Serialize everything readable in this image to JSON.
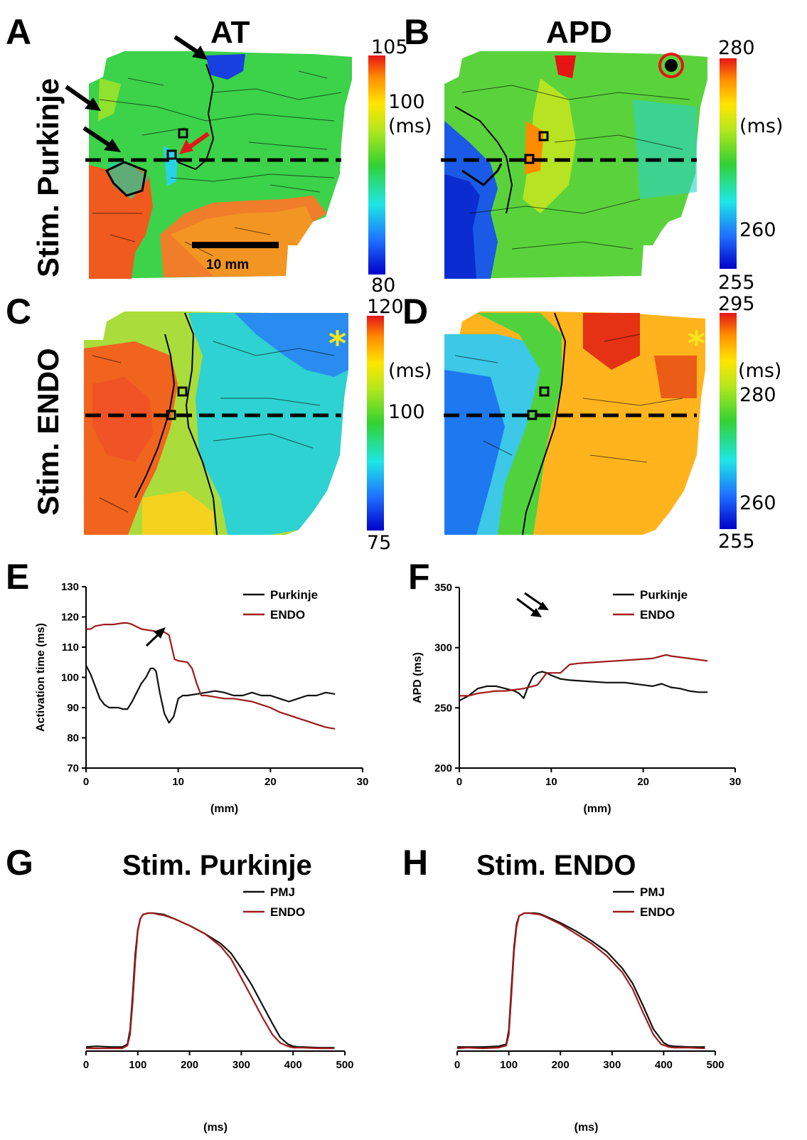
{
  "panel_letters": [
    "A",
    "B",
    "C",
    "D",
    "E",
    "F",
    "G",
    "H"
  ],
  "headers": {
    "at": "AT",
    "apd": "APD"
  },
  "row_labels": {
    "top": "Stim. Purkinje",
    "middle": "Stim. ENDO"
  },
  "scale_bar": "10 mm",
  "star": "*",
  "colorbars": {
    "A": {
      "top": "105",
      "mid": "100",
      "unit": "(ms)",
      "bottom": "80"
    },
    "B": {
      "top": "280",
      "unit": "(ms)",
      "mid": "260",
      "bottom": "255"
    },
    "C": {
      "top": "120",
      "unit": "(ms)",
      "mid": "100",
      "bottom": "75"
    },
    "D": {
      "top": "295",
      "unit": "(ms)",
      "mid1": "280",
      "mid2": "260",
      "bottom": "255"
    }
  },
  "colors": {
    "purkinje": "#111111",
    "endo": "#9e1b1b"
  },
  "chart_data": [
    {
      "panel": "E",
      "type": "line",
      "xlabel": "(mm)",
      "ylabel": "Activation time (ms)",
      "xlim": [
        0,
        30
      ],
      "ylim": [
        70,
        130
      ],
      "xticks": [
        0,
        10,
        20,
        30
      ],
      "yticks": [
        70,
        80,
        90,
        100,
        110,
        120,
        130
      ],
      "legend": "top-right",
      "series": [
        {
          "name": "Purkinje",
          "x": [
            0,
            0.5,
            1,
            1.5,
            2,
            2.5,
            3,
            3.5,
            4,
            4.5,
            5,
            5.5,
            6,
            6.5,
            7,
            7.3,
            7.6,
            8,
            8.5,
            9,
            9.5,
            10,
            10.5,
            11,
            12,
            13,
            14,
            15,
            16,
            17,
            18,
            19,
            20,
            21,
            22,
            23,
            24,
            25,
            26,
            27
          ],
          "y": [
            104,
            101,
            97,
            93,
            91,
            90,
            90,
            90,
            89.5,
            89.5,
            92,
            95,
            98,
            100,
            103,
            103,
            102,
            95,
            88,
            85,
            87,
            93,
            94,
            94,
            94.5,
            95,
            95.5,
            95,
            94,
            94,
            95,
            94,
            94,
            93,
            92,
            93,
            94,
            94,
            95,
            94.5
          ]
        },
        {
          "name": "ENDO",
          "x": [
            0,
            0.5,
            1,
            2,
            3,
            4,
            4.5,
            5,
            6,
            7,
            8,
            8.5,
            9,
            9.3,
            9.6,
            10,
            11,
            11.5,
            12,
            12.5,
            13,
            14,
            15,
            16,
            17,
            18,
            19,
            20,
            21,
            22,
            23,
            24,
            25,
            26,
            27
          ],
          "y": [
            116,
            116,
            117,
            117.5,
            117.5,
            118,
            118,
            117.5,
            116,
            115.5,
            115,
            115,
            114,
            110,
            106,
            105.5,
            105,
            103,
            98,
            94,
            94,
            93.5,
            93,
            93,
            92.5,
            92,
            91,
            90,
            88.5,
            87.5,
            86.5,
            85.5,
            84.5,
            83.5,
            83
          ]
        }
      ]
    },
    {
      "panel": "F",
      "type": "line",
      "xlabel": "(mm)",
      "ylabel": "APD (ms)",
      "xlim": [
        0,
        30
      ],
      "ylim": [
        200,
        350
      ],
      "xticks": [
        0,
        10,
        20,
        30
      ],
      "yticks": [
        200,
        250,
        300,
        350
      ],
      "legend": "top-right",
      "series": [
        {
          "name": "Purkinje",
          "x": [
            0,
            1,
            2,
            3,
            4,
            5,
            6,
            6.5,
            7,
            7.5,
            8,
            8.5,
            9,
            9.5,
            10,
            11,
            12,
            14,
            16,
            18,
            20,
            21,
            22,
            23,
            24,
            25,
            26,
            27
          ],
          "y": [
            256,
            260,
            266,
            268,
            268,
            266,
            264,
            262,
            258,
            268,
            276,
            279,
            280,
            279,
            277,
            274,
            273,
            272,
            271,
            271,
            269,
            268,
            270,
            267,
            266,
            264,
            263,
            263
          ]
        },
        {
          "name": "ENDO",
          "x": [
            0,
            1,
            2,
            3,
            4,
            5,
            6,
            7,
            8,
            8.5,
            9,
            9.5,
            10,
            11,
            12,
            13,
            15,
            17,
            19,
            21,
            22,
            22.5,
            23,
            25,
            27
          ],
          "y": [
            260,
            260,
            262,
            263,
            264,
            264,
            265,
            266,
            268,
            269,
            274,
            279,
            279,
            279,
            286,
            287,
            288,
            289,
            290,
            291,
            293,
            294,
            293,
            291,
            289
          ]
        }
      ]
    },
    {
      "panel": "G",
      "type": "line",
      "title": "Stim. Purkinje",
      "xlabel": "(ms)",
      "xlim": [
        0,
        500
      ],
      "xticks": [
        0,
        100,
        200,
        300,
        400,
        500
      ],
      "legend": "top-right",
      "series": [
        {
          "name": "PMJ",
          "x": [
            0,
            20,
            50,
            70,
            80,
            85,
            90,
            95,
            100,
            105,
            110,
            120,
            130,
            140,
            150,
            170,
            200,
            230,
            260,
            280,
            300,
            320,
            340,
            360,
            375,
            390,
            400,
            410,
            420,
            450,
            480
          ],
          "y": [
            0.03,
            0.035,
            0.03,
            0.03,
            0.05,
            0.15,
            0.4,
            0.7,
            0.88,
            0.96,
            0.99,
            1.0,
            1.0,
            0.995,
            0.99,
            0.96,
            0.91,
            0.85,
            0.78,
            0.71,
            0.6,
            0.48,
            0.34,
            0.2,
            0.1,
            0.05,
            0.035,
            0.03,
            0.03,
            0.025,
            0.025
          ]
        },
        {
          "name": "ENDO",
          "x": [
            0,
            20,
            50,
            70,
            80,
            85,
            90,
            95,
            100,
            105,
            110,
            120,
            130,
            140,
            150,
            170,
            200,
            230,
            260,
            280,
            300,
            320,
            340,
            360,
            375,
            390,
            400,
            420,
            450,
            480
          ],
          "y": [
            0.02,
            0.02,
            0.02,
            0.02,
            0.04,
            0.12,
            0.35,
            0.65,
            0.87,
            0.96,
            0.99,
            1.0,
            1.0,
            0.99,
            0.985,
            0.96,
            0.91,
            0.85,
            0.76,
            0.67,
            0.53,
            0.39,
            0.25,
            0.12,
            0.06,
            0.035,
            0.025,
            0.025,
            0.02,
            0.02
          ]
        }
      ]
    },
    {
      "panel": "H",
      "type": "line",
      "title": "Stim. ENDO",
      "xlabel": "(ms)",
      "xlim": [
        0,
        500
      ],
      "xticks": [
        0,
        100,
        200,
        300,
        400,
        500
      ],
      "legend": "top-right",
      "series": [
        {
          "name": "PMJ",
          "x": [
            0,
            20,
            50,
            80,
            95,
            100,
            105,
            110,
            115,
            120,
            130,
            140,
            150,
            160,
            170,
            200,
            230,
            260,
            290,
            320,
            340,
            360,
            380,
            400,
            410,
            420,
            450,
            480
          ],
          "y": [
            0.03,
            0.03,
            0.03,
            0.035,
            0.05,
            0.15,
            0.45,
            0.75,
            0.92,
            0.98,
            1.0,
            1.0,
            1.0,
            0.995,
            0.98,
            0.93,
            0.87,
            0.8,
            0.72,
            0.6,
            0.49,
            0.33,
            0.16,
            0.06,
            0.04,
            0.035,
            0.03,
            0.03
          ]
        },
        {
          "name": "ENDO",
          "x": [
            0,
            20,
            50,
            80,
            95,
            100,
            105,
            110,
            115,
            120,
            130,
            140,
            150,
            160,
            170,
            200,
            230,
            260,
            290,
            320,
            340,
            360,
            380,
            395,
            410,
            420,
            450,
            480
          ],
          "y": [
            0.02,
            0.025,
            0.02,
            0.025,
            0.04,
            0.12,
            0.4,
            0.72,
            0.9,
            0.98,
            1.0,
            1.0,
            0.995,
            0.99,
            0.975,
            0.92,
            0.85,
            0.78,
            0.69,
            0.57,
            0.45,
            0.28,
            0.12,
            0.05,
            0.03,
            0.025,
            0.025,
            0.02
          ]
        }
      ]
    }
  ]
}
